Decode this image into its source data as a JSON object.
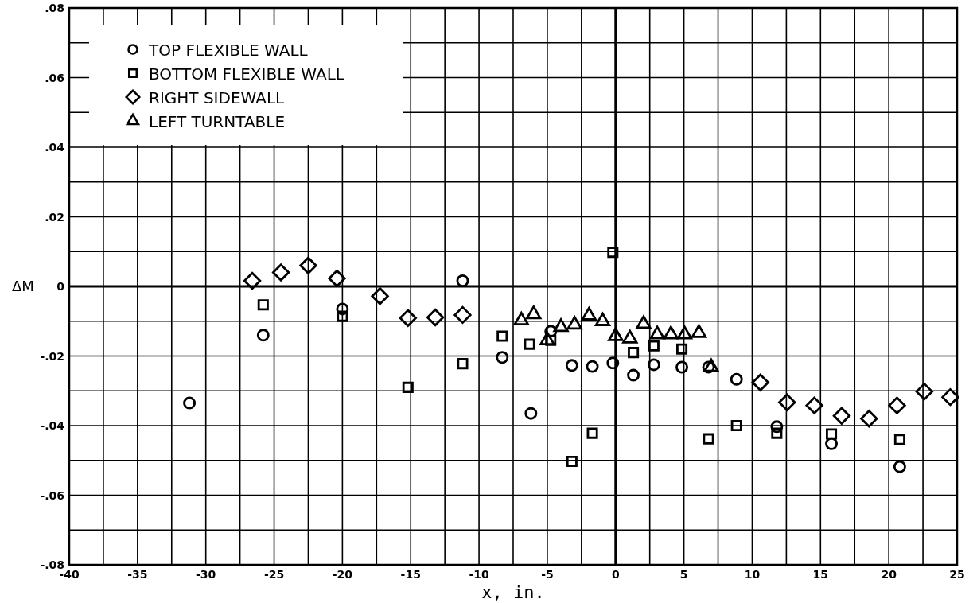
{
  "chart_data": {
    "type": "scatter",
    "xlabel": "x, in.",
    "ylabel": "ΔM",
    "xlim": [
      -40,
      25
    ],
    "ylim": [
      -0.08,
      0.08
    ],
    "xticks": [
      -40,
      -35,
      -30,
      -25,
      -20,
      -15,
      -10,
      -5,
      0,
      5,
      10,
      15,
      20,
      25
    ],
    "yticks": [
      {
        "value": -0.08,
        "label": "-.08"
      },
      {
        "value": -0.06,
        "label": "-.06"
      },
      {
        "value": -0.04,
        "label": "-.04"
      },
      {
        "value": -0.02,
        "label": "-.02"
      },
      0,
      {
        "value": 0.02,
        "label": ".02"
      },
      {
        "value": 0.04,
        "label": ".04"
      },
      {
        "value": 0.06,
        "label": ".06"
      },
      {
        "value": 0.08,
        "label": ".08"
      }
    ],
    "grid": true,
    "legend": "top left",
    "series": [
      {
        "name": "TOP FLEXIBLE WALL",
        "color": "#000000",
        "marker": "circle",
        "x": [
          -31.2,
          -25.8,
          -20.0,
          -11.2,
          -8.3,
          -6.2,
          -4.75,
          -3.2,
          -1.7,
          -0.2,
          1.3,
          2.8,
          4.85,
          6.8,
          8.85,
          11.8,
          15.8,
          20.8
        ],
        "values": [
          -0.0335,
          -0.014,
          -0.0065,
          0.0016,
          -0.0204,
          -0.0365,
          -0.0129,
          -0.0227,
          -0.023,
          -0.022,
          -0.0255,
          -0.0225,
          -0.0232,
          -0.0232,
          -0.0267,
          -0.0403,
          -0.0452,
          -0.0518
        ]
      },
      {
        "name": "BOTTOM FLEXIBLE WALL",
        "color": "#000000",
        "marker": "square",
        "x": [
          -25.8,
          -20.0,
          -15.2,
          -11.2,
          -8.3,
          -6.3,
          -4.75,
          -3.2,
          -1.7,
          -0.2,
          1.3,
          2.8,
          4.85,
          6.8,
          8.85,
          11.8,
          15.8,
          20.8
        ],
        "values": [
          -0.0053,
          -0.0086,
          -0.029,
          -0.0222,
          -0.0143,
          -0.0166,
          -0.0155,
          -0.0503,
          -0.0422,
          0.0098,
          -0.019,
          -0.0171,
          -0.018,
          -0.0438,
          -0.04,
          -0.0422,
          -0.0424,
          -0.044
        ]
      },
      {
        "name": "RIGHT SIDEWALL",
        "color": "#000000",
        "marker": "diamond",
        "x": [
          -26.6,
          -24.5,
          -22.5,
          -20.4,
          -17.25,
          -15.2,
          -13.2,
          -11.2,
          10.6,
          12.55,
          14.55,
          16.55,
          18.55,
          20.6,
          22.6,
          24.5
        ],
        "values": [
          0.0016,
          0.004,
          0.006,
          0.0023,
          -0.0028,
          -0.0091,
          -0.0089,
          -0.0082,
          -0.0276,
          -0.0333,
          -0.0342,
          -0.0372,
          -0.038,
          -0.0342,
          -0.0302,
          -0.0318
        ]
      },
      {
        "name": "LEFT TURNTABLE",
        "color": "#000000",
        "marker": "triangle",
        "x": [
          -6.9,
          -6.0,
          -5.0,
          -4.0,
          -3.0,
          -1.95,
          -0.95,
          0,
          1.05,
          2.05,
          3.05,
          4.05,
          5.05,
          6.1,
          7.0
        ],
        "values": [
          -0.0098,
          -0.008,
          -0.0155,
          -0.0117,
          -0.011,
          -0.0084,
          -0.01,
          -0.0143,
          -0.015,
          -0.0108,
          -0.0138,
          -0.0138,
          -0.0138,
          -0.0134,
          -0.0232
        ]
      }
    ]
  }
}
